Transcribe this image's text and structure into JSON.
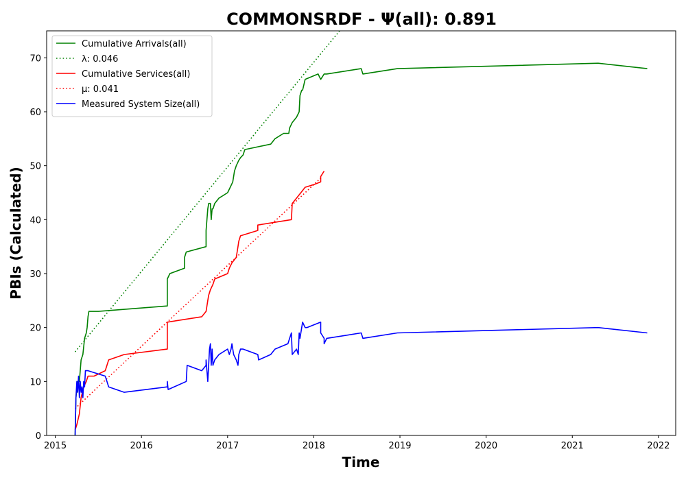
{
  "chart_data": {
    "type": "line",
    "title": "COMMONSRDF -  Ψ(all): 0.891",
    "xlabel": "Time",
    "ylabel": "PBIs (Calculated)",
    "xlim": [
      2014.9,
      2022.2
    ],
    "ylim": [
      0,
      75
    ],
    "x_ticks": [
      2015,
      2016,
      2017,
      2018,
      2019,
      2020,
      2021,
      2022
    ],
    "y_ticks": [
      0,
      10,
      20,
      30,
      40,
      50,
      60,
      70
    ],
    "grid": false,
    "legend_position": "top-left",
    "series": [
      {
        "name": "Cumulative Arrivals(all)",
        "color": "#008000",
        "style": "solid",
        "x": [
          2015.23,
          2015.24,
          2015.26,
          2015.28,
          2015.3,
          2015.32,
          2015.34,
          2015.36,
          2015.37,
          2015.38,
          2015.39,
          2015.5,
          2016.3,
          2016.3,
          2016.33,
          2016.5,
          2016.5,
          2016.52,
          2016.75,
          2016.75,
          2016.77,
          2016.78,
          2016.8,
          2016.81,
          2016.82,
          2016.83,
          2016.83,
          2016.85,
          2016.9,
          2017.0,
          2017.03,
          2017.06,
          2017.08,
          2017.1,
          2017.13,
          2017.15,
          2017.18,
          2017.2,
          2017.2,
          2017.5,
          2017.55,
          2017.65,
          2017.71,
          2017.72,
          2017.75,
          2017.8,
          2017.83,
          2017.84,
          2017.86,
          2017.87,
          2017.87,
          2017.9,
          2018.05,
          2018.08,
          2018.12,
          2018.15,
          2018.55,
          2018.57,
          2018.97,
          2021.3,
          2021.87
        ],
        "y": [
          0,
          7,
          10,
          10,
          14,
          15,
          18,
          19,
          20,
          22,
          23,
          23,
          24,
          29,
          30,
          31,
          33,
          34,
          35,
          38,
          42,
          43,
          43,
          40,
          42,
          42,
          42,
          43,
          44,
          45,
          46,
          47,
          49,
          50,
          51,
          51.5,
          52,
          53,
          53,
          54,
          55,
          56,
          56,
          57,
          58,
          59,
          60,
          63,
          64,
          64,
          64,
          66,
          67,
          66,
          67,
          67,
          68,
          67,
          68,
          69,
          68
        ]
      },
      {
        "name": "λ: 0.046",
        "color": "#008000",
        "style": "dotted",
        "x": [
          2015.23,
          2018.3
        ],
        "y": [
          15.5,
          75
        ]
      },
      {
        "name": "Cumulative Services(all)",
        "color": "#ff0000",
        "style": "solid",
        "x": [
          2015.23,
          2015.25,
          2015.28,
          2015.3,
          2015.33,
          2015.36,
          2015.38,
          2015.45,
          2015.58,
          2015.6,
          2015.62,
          2015.8,
          2016.3,
          2016.3,
          2016.7,
          2016.75,
          2016.77,
          2016.78,
          2016.8,
          2016.83,
          2016.85,
          2017.0,
          2017.02,
          2017.05,
          2017.1,
          2017.12,
          2017.13,
          2017.15,
          2017.35,
          2017.35,
          2017.74,
          2017.75,
          2017.8,
          2017.85,
          2017.9,
          2018.0,
          2018.08,
          2018.08,
          2018.12
        ],
        "y": [
          1,
          2,
          4,
          7,
          9,
          10,
          11,
          11,
          12,
          13,
          14,
          15,
          16,
          21,
          22,
          23,
          25,
          26,
          27,
          28,
          29,
          30,
          31,
          32,
          33,
          35,
          36,
          37,
          38,
          39,
          40,
          43,
          44,
          45,
          46,
          46.5,
          47,
          48,
          49
        ]
      },
      {
        "name": "μ: 0.041",
        "color": "#ff0000",
        "style": "dotted",
        "x": [
          2015.23,
          2018.1
        ],
        "y": [
          5,
          48
        ]
      },
      {
        "name": "Measured System Size(all)",
        "color": "#0000ff",
        "style": "solid",
        "x": [
          2015.23,
          2015.24,
          2015.25,
          2015.26,
          2015.27,
          2015.28,
          2015.29,
          2015.3,
          2015.31,
          2015.32,
          2015.33,
          2015.34,
          2015.35,
          2015.36,
          2015.38,
          2015.58,
          2015.6,
          2015.62,
          2015.8,
          2016.3,
          2016.3,
          2016.31,
          2016.52,
          2016.53,
          2016.7,
          2016.75,
          2016.75,
          2016.77,
          2016.79,
          2016.8,
          2016.81,
          2016.82,
          2016.83,
          2016.85,
          2016.9,
          2017.0,
          2017.02,
          2017.04,
          2017.05,
          2017.07,
          2017.1,
          2017.12,
          2017.13,
          2017.15,
          2017.18,
          2017.35,
          2017.36,
          2017.5,
          2017.55,
          2017.7,
          2017.72,
          2017.74,
          2017.75,
          2017.8,
          2017.82,
          2017.83,
          2017.84,
          2017.87,
          2017.9,
          2017.92,
          2018.08,
          2018.08,
          2018.12,
          2018.12,
          2018.15,
          2018.55,
          2018.57,
          2018.97,
          2021.3,
          2021.87
        ],
        "y": [
          0,
          7,
          10,
          8,
          11,
          7,
          10,
          8,
          9,
          7,
          10,
          9,
          12,
          12,
          12,
          11,
          10,
          9,
          8,
          9,
          10,
          8.5,
          10,
          13,
          12,
          13,
          14,
          10,
          16,
          17,
          13,
          16,
          13,
          14,
          15,
          16,
          15,
          16,
          17,
          15,
          14,
          13,
          15,
          16,
          16,
          15,
          14,
          15,
          16,
          17,
          18,
          19,
          15,
          16,
          15,
          19,
          18,
          21,
          20,
          20,
          21,
          19,
          18,
          17,
          18,
          19,
          18,
          19,
          20,
          19
        ]
      }
    ]
  }
}
